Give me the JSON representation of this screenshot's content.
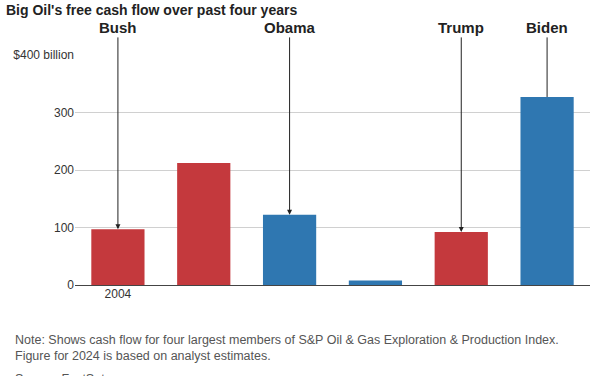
{
  "chart_data": {
    "type": "bar",
    "title": "Big Oil's free cash flow over past four years",
    "categories": [
      "2004",
      null,
      null,
      null,
      null,
      null
    ],
    "values": [
      97,
      212,
      122,
      8,
      92,
      327
    ],
    "colors": [
      "#c4393d",
      "#c4393d",
      "#2f77b1",
      "#2f77b1",
      "#c4393d",
      "#2f77b1"
    ],
    "ylim": [
      0,
      400
    ],
    "yticks": [
      0,
      100,
      200,
      300,
      {
        "value": 400,
        "label": "$400 billion"
      }
    ],
    "grid": true,
    "annotations": [
      {
        "text": "Bush",
        "x": 0,
        "marker": "arrow"
      },
      {
        "text": "Obama",
        "x": 2,
        "marker": "arrow"
      },
      {
        "text": "Trump",
        "x": 4,
        "marker": "arrow"
      },
      {
        "text": "Biden",
        "x": 5,
        "marker": "line"
      }
    ],
    "note": [
      "Note: Shows cash flow for four largest members of S&P Oil & Gas Exploration & Production Index.",
      "Figure for 2024 is based on analyst estimates."
    ],
    "source": "Source: FactSet"
  }
}
